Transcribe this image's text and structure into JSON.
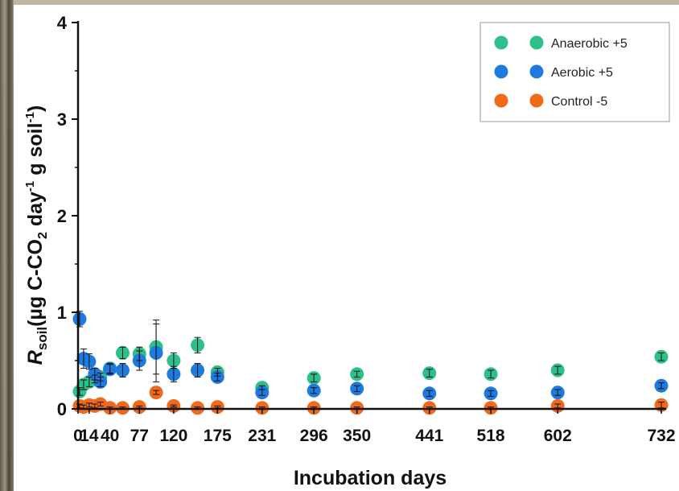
{
  "chart_data": {
    "type": "scatter",
    "title": "",
    "xlabel": "Incubation days",
    "ylabel": {
      "main": "R",
      "sub": "soil",
      "unit": "(µg C-CO",
      "unit_sub": "2",
      "unit_mid": " day",
      "unit_sup1": "-1",
      "unit_tail": " g soil",
      "unit_sup2": "-1",
      "unit_close": ")"
    },
    "ylim": [
      0,
      4
    ],
    "yticks": [
      "0",
      "1",
      "2",
      "3",
      "4"
    ],
    "xlim": [
      0,
      732
    ],
    "xtick_labels": [
      "0",
      "14",
      "40",
      "77",
      "120",
      "175",
      "231",
      "296",
      "350",
      "441",
      "518",
      "602",
      "732"
    ],
    "xtick_values": [
      0,
      14,
      40,
      77,
      120,
      175,
      231,
      296,
      350,
      441,
      518,
      602,
      732
    ],
    "grid": false,
    "legend_position": "top-right",
    "series": [
      {
        "name": "Anaerobic +5",
        "color": "#2fbf8a",
        "x": [
          2,
          7,
          14,
          21,
          28,
          40,
          56,
          77,
          98,
          120,
          150,
          175,
          231,
          296,
          350,
          441,
          518,
          602,
          732
        ],
        "y": [
          0.18,
          0.25,
          0.28,
          0.31,
          0.33,
          0.42,
          0.58,
          0.57,
          0.64,
          0.5,
          0.66,
          0.38,
          0.22,
          0.32,
          0.36,
          0.37,
          0.36,
          0.4,
          0.54
        ],
        "err": [
          0.04,
          0.05,
          0.05,
          0.04,
          0.04,
          0.05,
          0.06,
          0.07,
          0.28,
          0.08,
          0.08,
          0.04,
          0.02,
          0.04,
          0.03,
          0.04,
          0.04,
          0.04,
          0.04
        ]
      },
      {
        "name": "Aerobic +5",
        "color": "#1f7ae0",
        "x": [
          2,
          7,
          14,
          21,
          28,
          40,
          56,
          77,
          98,
          120,
          150,
          175,
          231,
          296,
          350,
          441,
          518,
          602,
          732
        ],
        "y": [
          0.93,
          0.52,
          0.49,
          0.36,
          0.28,
          0.41,
          0.4,
          0.5,
          0.58,
          0.36,
          0.4,
          0.33,
          0.17,
          0.19,
          0.21,
          0.16,
          0.16,
          0.17,
          0.24
        ],
        "err": [
          0.08,
          0.1,
          0.08,
          0.06,
          0.05,
          0.05,
          0.07,
          0.1,
          0.3,
          0.08,
          0.07,
          0.04,
          0.03,
          0.03,
          0.03,
          0.03,
          0.03,
          0.03,
          0.03
        ]
      },
      {
        "name": "Control -5",
        "color": "#f06a1a",
        "x": [
          2,
          7,
          14,
          21,
          28,
          40,
          56,
          77,
          98,
          120,
          150,
          175,
          231,
          296,
          350,
          441,
          518,
          602,
          732
        ],
        "y": [
          0.03,
          0.02,
          0.04,
          0.03,
          0.05,
          0.01,
          0.01,
          0.02,
          0.17,
          0.03,
          0.01,
          0.02,
          0.01,
          0.01,
          0.01,
          0.01,
          0.01,
          0.03,
          0.04
        ],
        "err": [
          0.02,
          0.02,
          0.02,
          0.02,
          0.02,
          0.01,
          0.01,
          0.01,
          0.02,
          0.01,
          0.01,
          0.01,
          0.01,
          0.01,
          0.01,
          0.01,
          0.01,
          0.02,
          0.03
        ]
      }
    ]
  }
}
